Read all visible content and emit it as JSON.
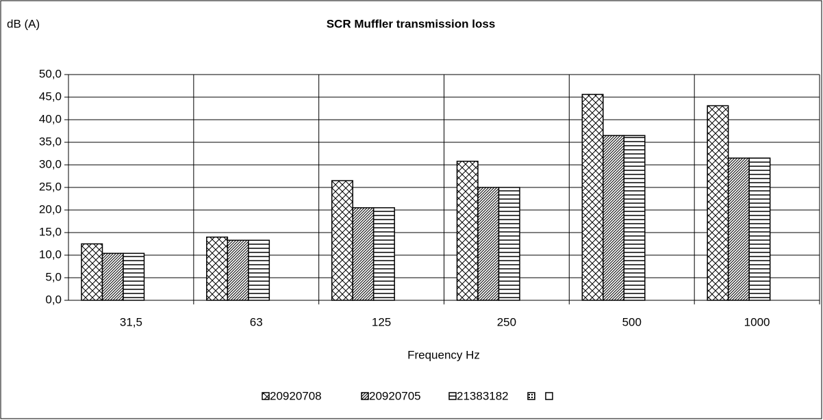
{
  "chart_data": {
    "type": "bar",
    "title": "SCR Muffler transmission loss",
    "y_label": "dB (A)",
    "x_label": "Frequency Hz",
    "categories": [
      "31,5",
      "63",
      "125",
      "250",
      "500",
      "1000"
    ],
    "series": [
      {
        "name": "20920708",
        "color": "#000000",
        "pattern": "crosshatch",
        "values": [
          12.5,
          14.0,
          26.5,
          30.8,
          45.6,
          43.1
        ]
      },
      {
        "name": "20920705",
        "color": "#000000",
        "pattern": "diagonal",
        "values": [
          10.4,
          13.3,
          20.5,
          25.0,
          36.5,
          31.5
        ]
      },
      {
        "name": "21383182",
        "color": "#000000",
        "pattern": "horizontal",
        "values": [
          10.4,
          13.3,
          20.5,
          25.0,
          36.5,
          31.5
        ]
      }
    ],
    "ylim": [
      0,
      50
    ],
    "yticks": [
      {
        "value": 0,
        "label": "0,0"
      },
      {
        "value": 5,
        "label": "5,0"
      },
      {
        "value": 10,
        "label": "10,0"
      },
      {
        "value": 15,
        "label": "15,0"
      },
      {
        "value": 20,
        "label": "20,0"
      },
      {
        "value": 25,
        "label": "25,0"
      },
      {
        "value": 30,
        "label": "30,0"
      },
      {
        "value": 35,
        "label": "35,0"
      },
      {
        "value": 40,
        "label": "40,0"
      },
      {
        "value": 45,
        "label": "45,0"
      },
      {
        "value": 50,
        "label": "50,0"
      }
    ],
    "grid": true,
    "legend": "bottom"
  }
}
